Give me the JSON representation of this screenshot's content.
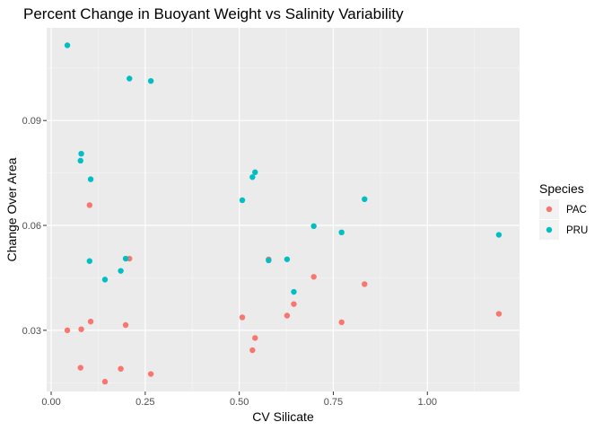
{
  "chart_data": {
    "type": "scatter",
    "title": "Percent Change in Buoyant Weight vs Salinity Variability",
    "xlabel": "CV Silicate",
    "ylabel": "Change Over Area",
    "xlim": [
      -0.012,
      1.245
    ],
    "ylim": [
      0.0125,
      0.1165
    ],
    "x_ticks": [
      0.0,
      0.25,
      0.5,
      0.75,
      1.0
    ],
    "x_tick_labels": [
      "0.00",
      "0.25",
      "0.50",
      "0.75",
      "1.00"
    ],
    "y_ticks": [
      0.03,
      0.06,
      0.09
    ],
    "y_tick_labels": [
      "0.03",
      "0.06",
      "0.09"
    ],
    "grid": true,
    "legend": {
      "title": "Species",
      "position": "right"
    },
    "series": [
      {
        "name": "PAC",
        "color": "#F8766D",
        "points": [
          [
            0.043,
            0.03
          ],
          [
            0.078,
            0.0193
          ],
          [
            0.08,
            0.0303
          ],
          [
            0.102,
            0.0658
          ],
          [
            0.105,
            0.0325
          ],
          [
            0.143,
            0.0153
          ],
          [
            0.185,
            0.019
          ],
          [
            0.198,
            0.0315
          ],
          [
            0.208,
            0.0505
          ],
          [
            0.265,
            0.0175
          ],
          [
            0.508,
            0.0337
          ],
          [
            0.535,
            0.0243
          ],
          [
            0.542,
            0.0278
          ],
          [
            0.578,
            0.0503
          ],
          [
            0.627,
            0.0342
          ],
          [
            0.645,
            0.0375
          ],
          [
            0.698,
            0.0453
          ],
          [
            0.772,
            0.0323
          ],
          [
            0.833,
            0.0432
          ],
          [
            1.19,
            0.0347
          ]
        ]
      },
      {
        "name": "PRU",
        "color": "#00BFC4",
        "points": [
          [
            0.043,
            0.1115
          ],
          [
            0.078,
            0.0785
          ],
          [
            0.08,
            0.0805
          ],
          [
            0.102,
            0.0498
          ],
          [
            0.105,
            0.0732
          ],
          [
            0.143,
            0.0445
          ],
          [
            0.185,
            0.047
          ],
          [
            0.198,
            0.0505
          ],
          [
            0.208,
            0.102
          ],
          [
            0.265,
            0.1013
          ],
          [
            0.508,
            0.0672
          ],
          [
            0.535,
            0.0738
          ],
          [
            0.542,
            0.0752
          ],
          [
            0.578,
            0.05
          ],
          [
            0.627,
            0.0503
          ],
          [
            0.645,
            0.041
          ],
          [
            0.698,
            0.0598
          ],
          [
            0.772,
            0.058
          ],
          [
            0.833,
            0.0675
          ],
          [
            1.19,
            0.0573
          ]
        ]
      }
    ]
  }
}
